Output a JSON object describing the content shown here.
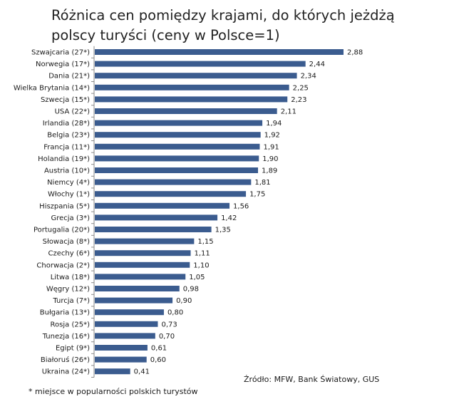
{
  "chart_data": {
    "type": "bar",
    "orientation": "horizontal",
    "title_lines": [
      "Różnica cen pomiędzy krajami, do których jeżdżą",
      "polscy turyści (ceny w Polsce=1)"
    ],
    "categories": [
      "Szwajcaria (27*)",
      "Norwegia (17*)",
      "Dania (21*)",
      "Wielka Brytania (14*)",
      "Szwecja (15*)",
      "USA (22*)",
      "Irlandia (28*)",
      "Belgia (23*)",
      "Francja (11*)",
      "Holandia (19*)",
      "Austria (10*)",
      "Niemcy (4*)",
      "Włochy (1*)",
      "Hiszpania (5*)",
      "Grecja (3*)",
      "Portugalia (20*)",
      "Słowacja (8*)",
      "Czechy (6*)",
      "Chorwacja (2*)",
      "Litwa (18*)",
      "Węgry (12*)",
      "Turcja (7*)",
      "Bułgaria (13*)",
      "Rosja (25*)",
      "Tunezja (16*)",
      "Egipt (9*)",
      "Białoruś (26*)",
      "Ukraina (24*)"
    ],
    "values": [
      2.88,
      2.44,
      2.34,
      2.25,
      2.23,
      2.11,
      1.94,
      1.92,
      1.91,
      1.9,
      1.89,
      1.81,
      1.75,
      1.56,
      1.42,
      1.35,
      1.15,
      1.11,
      1.1,
      1.05,
      0.98,
      0.9,
      0.8,
      0.73,
      0.7,
      0.61,
      0.6,
      0.41
    ],
    "value_labels": [
      "2,88",
      "2,44",
      "2,34",
      "2,25",
      "2,23",
      "2,11",
      "1,94",
      "1,92",
      "1,91",
      "1,90",
      "1,89",
      "1,81",
      "1,75",
      "1,56",
      "1,42",
      "1,35",
      "1,15",
      "1,11",
      "1,10",
      "1,05",
      "0,98",
      "0,90",
      "0,80",
      "0,73",
      "0,70",
      "0,61",
      "0,60",
      "0,41"
    ],
    "xlim": [
      0,
      2.88
    ],
    "bar_color": "#3B5C8F",
    "grid": false,
    "source": "Źródło: MFW, Bank Światowy, GUS",
    "footnote": "* miejsce w popularności polskich turystów"
  }
}
